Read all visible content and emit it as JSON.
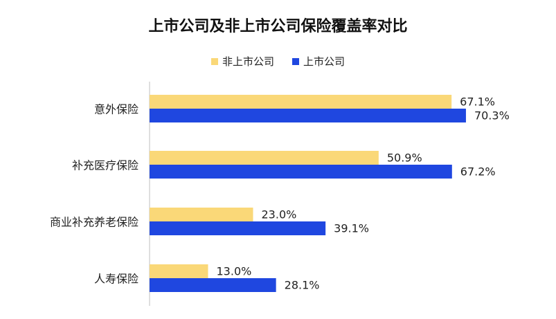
{
  "chart_data": {
    "type": "bar",
    "orientation": "horizontal",
    "title": "上市公司及非上市公司保险覆盖率对比",
    "categories": [
      "意外保险",
      "补充医疗保险",
      "商业补充养老保险",
      "人寿保险"
    ],
    "series": [
      {
        "name": "非上市公司",
        "values": [
          67.1,
          50.9,
          23.0,
          13.0
        ],
        "labels": [
          "67.1%",
          "50.9%",
          "23.0%",
          "13.0%"
        ],
        "color": "#FAD878"
      },
      {
        "name": "上市公司",
        "values": [
          70.3,
          67.2,
          39.1,
          28.1
        ],
        "labels": [
          "70.3%",
          "67.2%",
          "39.1%",
          "28.1%"
        ],
        "color": "#1F47E0"
      }
    ],
    "xlim": [
      0,
      100
    ],
    "grid": false,
    "legend": "top-center"
  }
}
